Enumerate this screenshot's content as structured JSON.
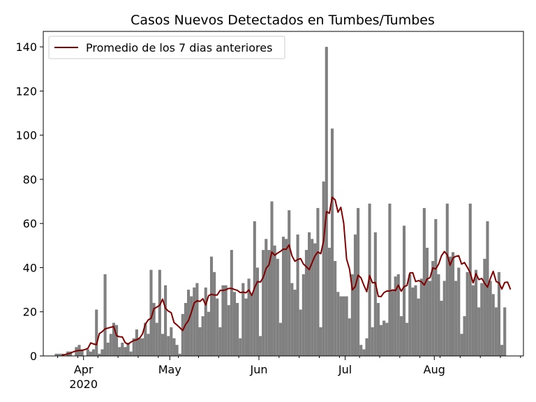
{
  "chart_data": {
    "type": "bar",
    "title": "Casos Nuevos Detectados en Tumbes/Tumbes",
    "xlabel": "",
    "ylabel": "",
    "x_start": "2020-03-18",
    "x_end": "2020-08-31",
    "ylim": [
      0,
      147
    ],
    "yticks": [
      0,
      20,
      40,
      60,
      80,
      100,
      120,
      140
    ],
    "xticks": [
      {
        "date": "2020-04-01",
        "label": "Apr",
        "sublabel": "2020"
      },
      {
        "date": "2020-05-01",
        "label": "May",
        "sublabel": ""
      },
      {
        "date": "2020-06-01",
        "label": "Jun",
        "sublabel": ""
      },
      {
        "date": "2020-07-01",
        "label": "Jul",
        "sublabel": ""
      },
      {
        "date": "2020-08-01",
        "label": "Aug",
        "sublabel": ""
      }
    ],
    "grid": false,
    "legend": {
      "position": "top-left"
    },
    "bar_color": "#808080",
    "line_color": "#800000",
    "series": [
      {
        "name": "Casos nuevos",
        "kind": "bar",
        "values": [
          0,
          0,
          0,
          0,
          1,
          1,
          1,
          0,
          2,
          2,
          0,
          4,
          5,
          3,
          0,
          3,
          2,
          3,
          21,
          1,
          3,
          37,
          6,
          10,
          15,
          14,
          4,
          6,
          4,
          6,
          2,
          8,
          12,
          8,
          8,
          15,
          10,
          39,
          24,
          15,
          39,
          10,
          32,
          9,
          13,
          8,
          5,
          1,
          19,
          24,
          30,
          27,
          31,
          33,
          13,
          18,
          31,
          20,
          45,
          38,
          26,
          13,
          32,
          32,
          23,
          48,
          29,
          24,
          8,
          33,
          26,
          35,
          28,
          61,
          40,
          9,
          48,
          53,
          48,
          70,
          50,
          44,
          15,
          54,
          53,
          66,
          33,
          30,
          55,
          21,
          37,
          48,
          56,
          53,
          51,
          67,
          13,
          79,
          140,
          49,
          103,
          43,
          29,
          27,
          27,
          27,
          17,
          37,
          55,
          67,
          5,
          3,
          8,
          69,
          13,
          56,
          24,
          14,
          16,
          15,
          69,
          30,
          36,
          37,
          18,
          59,
          15,
          37,
          31,
          32,
          26,
          35,
          67,
          49,
          34,
          43,
          62,
          37,
          25,
          34,
          69,
          45,
          47,
          34,
          40,
          10,
          18,
          38,
          69,
          32,
          39,
          22,
          33,
          44,
          61,
          34,
          28,
          22,
          38,
          5,
          22
        ]
      },
      {
        "name": "Promedio de los 7 dias anteriores",
        "kind": "line",
        "start_date": "2020-03-24",
        "values": [
          0.4,
          0.6,
          0.9,
          1.3,
          1.9,
          2.3,
          2.5,
          2.5,
          2.9,
          3.4,
          5.9,
          5.4,
          5.1,
          10.1,
          11.0,
          12.3,
          12.6,
          13.0,
          13.3,
          9.1,
          8.7,
          8.6,
          6.0,
          5.3,
          6.3,
          7.0,
          7.3,
          8.1,
          9.9,
          14.4,
          16.3,
          17.1,
          21.4,
          22.1,
          23.0,
          25.7,
          21.6,
          20.3,
          19.6,
          15.1,
          14.0,
          12.8,
          11.5,
          14.3,
          16.0,
          19.7,
          24.0,
          25.0,
          24.7,
          25.9,
          23.1,
          27.3,
          27.9,
          27.6,
          27.6,
          29.7,
          29.7,
          30.0,
          30.6,
          30.6,
          30.1,
          29.7,
          28.7,
          28.9,
          28.6,
          29.9,
          27.4,
          30.9,
          33.7,
          33.4,
          35.6,
          39.7,
          41.3,
          47.1,
          45.6,
          46.6,
          47.4,
          48.4,
          48.3,
          50.3,
          45.3,
          42.9,
          43.7,
          44.1,
          41.6,
          40.4,
          39.1,
          42.3,
          45.3,
          47.1,
          46.3,
          52.1,
          65.4,
          64.6,
          71.9,
          70.7,
          65.1,
          67.3,
          60.1,
          43.9,
          39.4,
          29.9,
          31.4,
          36.6,
          35.4,
          32.0,
          29.1,
          36.4,
          33.1,
          33.3,
          27.0,
          26.9,
          28.7,
          29.4,
          29.4,
          29.9,
          29.6,
          32.1,
          29.3,
          31.4,
          31.9,
          37.6,
          37.7,
          33.7,
          34.1,
          33.6,
          32.1,
          34.9,
          35.4,
          39.9,
          39.4,
          41.6,
          45.4,
          47.3,
          45.8,
          41.1,
          44.4,
          45.1,
          45.4,
          41.6,
          42.3,
          40.1,
          37.6,
          33.1,
          37.3,
          34.6,
          35.1,
          32.9,
          31.1,
          35.1,
          38.3,
          33.7,
          33.1,
          30.3,
          33.3,
          33.4,
          30.1
        ]
      }
    ]
  }
}
